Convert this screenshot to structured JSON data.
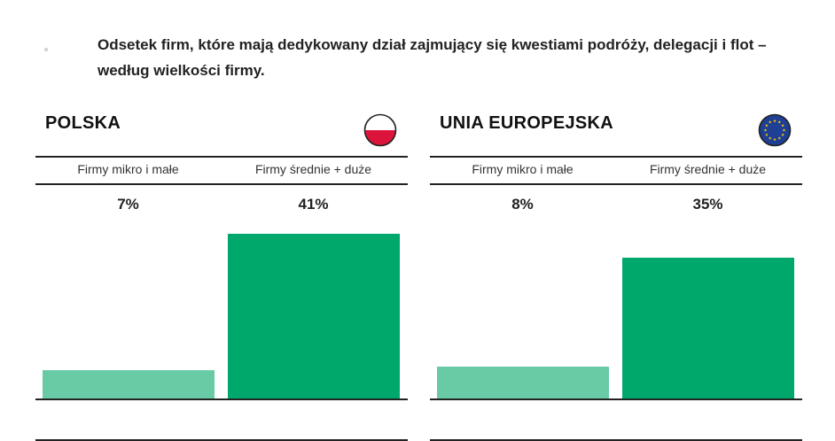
{
  "title": "Odsetek firm, które mają dedykowany dział zajmujący się kwestiami podróży, delegacji i flot – według wielkości firmy.",
  "colors": {
    "light_bar": "#68cba6",
    "dark_bar": "#00a86b"
  },
  "chart_data": [
    {
      "type": "bar",
      "title": "POLSKA",
      "flag_icon": "poland-flag-icon",
      "categories": [
        "Firmy mikro i małe",
        "Firmy średnie + duże"
      ],
      "values": [
        7,
        41
      ],
      "value_labels": [
        "7%",
        "41%"
      ],
      "ylim": [
        0,
        41
      ]
    },
    {
      "type": "bar",
      "title": "UNIA EUROPEJSKA",
      "flag_icon": "eu-flag-icon",
      "categories": [
        "Firmy mikro i małe",
        "Firmy średnie + duże"
      ],
      "values": [
        8,
        35
      ],
      "value_labels": [
        "8%",
        "35%"
      ],
      "ylim": [
        0,
        41
      ]
    }
  ]
}
